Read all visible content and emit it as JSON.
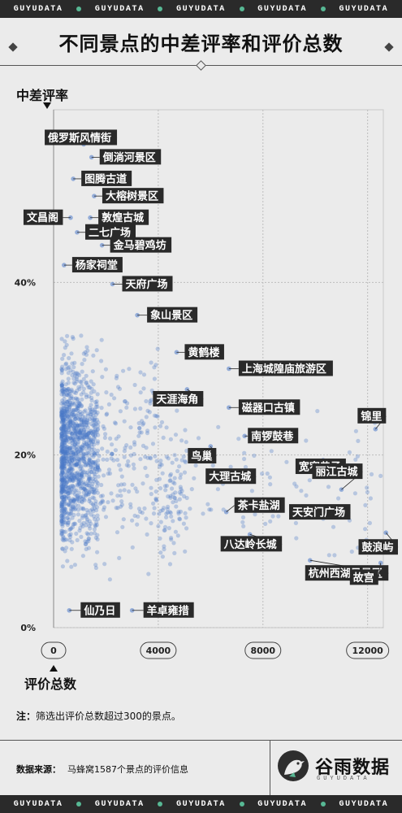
{
  "brand": {
    "band_text": "GUYUDATA",
    "logo_text": "谷雨数据",
    "logo_sub": "GUYUDATA"
  },
  "header": {
    "title": "不同景点的中差评率和评价总数"
  },
  "footer": {
    "note_label": "注：",
    "note_text": "筛选出评价总数超过300的景点。",
    "source_label": "数据来源：",
    "source_text": "马蜂窝1587个景点的评价信息"
  },
  "colors": {
    "point": "#4a78c8",
    "label_bg": "#2a2a2a",
    "band": "#2a2a2a",
    "accent": "#57b894"
  },
  "chart_data": {
    "type": "scatter",
    "xlabel": "评价总数",
    "ylabel": "中差评率",
    "xlim": [
      0,
      12600
    ],
    "ylim": [
      0,
      0.6
    ],
    "x_ticks": [
      0,
      4000,
      8000,
      12000
    ],
    "x_tick_labels": [
      "0",
      "4000",
      "8000",
      "12000"
    ],
    "y_ticks": [
      0,
      0.2,
      0.4
    ],
    "y_tick_labels": [
      "0%",
      "20%",
      "40%"
    ],
    "grid": true,
    "labeled_points": [
      {
        "name": "俄罗斯风情街",
        "x": 1150,
        "y": 0.56
      },
      {
        "name": "倒淌河景区",
        "x": 1450,
        "y": 0.545
      },
      {
        "name": "图腾古道",
        "x": 750,
        "y": 0.52
      },
      {
        "name": "大榕树景区",
        "x": 1550,
        "y": 0.5
      },
      {
        "name": "文昌阁",
        "x": 650,
        "y": 0.475
      },
      {
        "name": "敦煌古城",
        "x": 1400,
        "y": 0.475
      },
      {
        "name": "二七广场",
        "x": 900,
        "y": 0.458
      },
      {
        "name": "金马碧鸡坊",
        "x": 1850,
        "y": 0.443
      },
      {
        "name": "杨家祠堂",
        "x": 400,
        "y": 0.42
      },
      {
        "name": "天府广场",
        "x": 2250,
        "y": 0.398
      },
      {
        "name": "象山景区",
        "x": 3200,
        "y": 0.362
      },
      {
        "name": "黄鹤楼",
        "x": 4700,
        "y": 0.319
      },
      {
        "name": "上海城隍庙旅游区",
        "x": 6700,
        "y": 0.3
      },
      {
        "name": "天涯海角",
        "x": 5100,
        "y": 0.276
      },
      {
        "name": "磁器口古镇",
        "x": 6700,
        "y": 0.255
      },
      {
        "name": "锦里",
        "x": 12300,
        "y": 0.23
      },
      {
        "name": "南锣鼓巷",
        "x": 7300,
        "y": 0.222
      },
      {
        "name": "鸟巢",
        "x": 6000,
        "y": 0.21
      },
      {
        "name": "宽窄巷子",
        "x": 10300,
        "y": 0.194
      },
      {
        "name": "大理古城",
        "x": 7300,
        "y": 0.175
      },
      {
        "name": "丽江古城",
        "x": 11000,
        "y": 0.16
      },
      {
        "name": "茶卡盐湖",
        "x": 6600,
        "y": 0.134
      },
      {
        "name": "天安门广场",
        "x": 10800,
        "y": 0.128
      },
      {
        "name": "鼓浪屿",
        "x": 12700,
        "y": 0.11
      },
      {
        "name": "八达岭长城",
        "x": 7500,
        "y": 0.108
      },
      {
        "name": "杭州西湖风景区",
        "x": 9800,
        "y": 0.078
      },
      {
        "name": "故宫",
        "x": 12500,
        "y": 0.075
      },
      {
        "name": "仙乃日",
        "x": 600,
        "y": 0.02
      },
      {
        "name": "羊卓雍措",
        "x": 3000,
        "y": 0.02
      }
    ],
    "background_points": {
      "count": 1558,
      "seed": 7,
      "note_free": true
    }
  }
}
